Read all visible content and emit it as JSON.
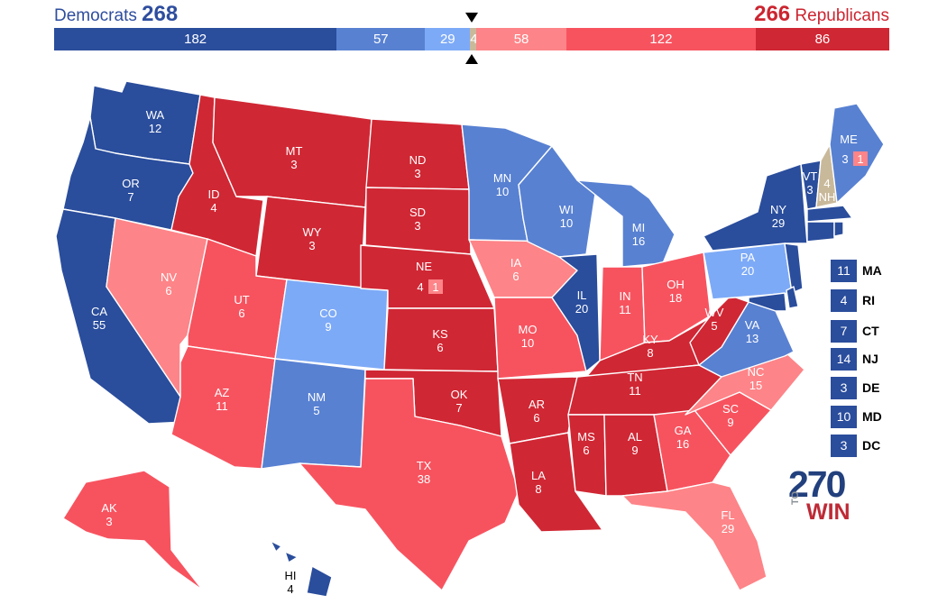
{
  "header": {
    "dem_label": "Democrats",
    "dem_total": "268",
    "rep_total": "266",
    "rep_label": "Republicans"
  },
  "colors": {
    "safe_d": "#2a4d9c",
    "likely_d": "#5881d2",
    "lean_d": "#7daaf7",
    "tossup": "#c9b99b",
    "lean_r": "#fd8488",
    "likely_r": "#f7535f",
    "safe_r": "#d02734"
  },
  "bar": [
    {
      "rating": "safe_d",
      "value": "182"
    },
    {
      "rating": "likely_d",
      "value": "57"
    },
    {
      "rating": "lean_d",
      "value": "29"
    },
    {
      "rating": "tossup",
      "value": "4"
    },
    {
      "rating": "lean_r",
      "value": "58"
    },
    {
      "rating": "likely_r",
      "value": "122"
    },
    {
      "rating": "safe_r",
      "value": "86"
    }
  ],
  "states": [
    {
      "abbr": "WA",
      "ev": "12",
      "rating": "safe_d"
    },
    {
      "abbr": "OR",
      "ev": "7",
      "rating": "safe_d"
    },
    {
      "abbr": "CA",
      "ev": "55",
      "rating": "safe_d"
    },
    {
      "abbr": "NV",
      "ev": "6",
      "rating": "lean_r"
    },
    {
      "abbr": "ID",
      "ev": "4",
      "rating": "safe_r"
    },
    {
      "abbr": "MT",
      "ev": "3",
      "rating": "safe_r"
    },
    {
      "abbr": "WY",
      "ev": "3",
      "rating": "safe_r"
    },
    {
      "abbr": "UT",
      "ev": "6",
      "rating": "likely_r"
    },
    {
      "abbr": "AZ",
      "ev": "11",
      "rating": "likely_r"
    },
    {
      "abbr": "CO",
      "ev": "9",
      "rating": "lean_d"
    },
    {
      "abbr": "NM",
      "ev": "5",
      "rating": "likely_d"
    },
    {
      "abbr": "ND",
      "ev": "3",
      "rating": "safe_r"
    },
    {
      "abbr": "SD",
      "ev": "3",
      "rating": "safe_r"
    },
    {
      "abbr": "NE",
      "ev": "4",
      "rating": "safe_r"
    },
    {
      "abbr": "KS",
      "ev": "6",
      "rating": "safe_r"
    },
    {
      "abbr": "OK",
      "ev": "7",
      "rating": "safe_r"
    },
    {
      "abbr": "TX",
      "ev": "38",
      "rating": "likely_r"
    },
    {
      "abbr": "MN",
      "ev": "10",
      "rating": "likely_d"
    },
    {
      "abbr": "IA",
      "ev": "6",
      "rating": "lean_r"
    },
    {
      "abbr": "MO",
      "ev": "10",
      "rating": "likely_r"
    },
    {
      "abbr": "AR",
      "ev": "6",
      "rating": "safe_r"
    },
    {
      "abbr": "LA",
      "ev": "8",
      "rating": "safe_r"
    },
    {
      "abbr": "WI",
      "ev": "10",
      "rating": "likely_d"
    },
    {
      "abbr": "IL",
      "ev": "20",
      "rating": "safe_d"
    },
    {
      "abbr": "MI",
      "ev": "16",
      "rating": "likely_d"
    },
    {
      "abbr": "IN",
      "ev": "11",
      "rating": "likely_r"
    },
    {
      "abbr": "OH",
      "ev": "18",
      "rating": "likely_r"
    },
    {
      "abbr": "KY",
      "ev": "8",
      "rating": "safe_r"
    },
    {
      "abbr": "TN",
      "ev": "11",
      "rating": "safe_r"
    },
    {
      "abbr": "MS",
      "ev": "6",
      "rating": "safe_r"
    },
    {
      "abbr": "AL",
      "ev": "9",
      "rating": "safe_r"
    },
    {
      "abbr": "GA",
      "ev": "16",
      "rating": "likely_r"
    },
    {
      "abbr": "FL",
      "ev": "29",
      "rating": "lean_r"
    },
    {
      "abbr": "SC",
      "ev": "9",
      "rating": "likely_r"
    },
    {
      "abbr": "NC",
      "ev": "15",
      "rating": "lean_r"
    },
    {
      "abbr": "VA",
      "ev": "13",
      "rating": "likely_d"
    },
    {
      "abbr": "WV",
      "ev": "5",
      "rating": "safe_r"
    },
    {
      "abbr": "PA",
      "ev": "20",
      "rating": "lean_d"
    },
    {
      "abbr": "NY",
      "ev": "29",
      "rating": "safe_d"
    },
    {
      "abbr": "VT",
      "ev": "3",
      "rating": "safe_d"
    },
    {
      "abbr": "NH",
      "ev": "4",
      "rating": "tossup"
    },
    {
      "abbr": "ME",
      "ev": "3",
      "rating": "likely_d"
    },
    {
      "abbr": "AK",
      "ev": "3",
      "rating": "likely_r"
    },
    {
      "abbr": "HI",
      "ev": "4",
      "rating": "safe_d"
    }
  ],
  "split_districts": {
    "me_cd2": {
      "value": "1",
      "rating": "lean_r"
    },
    "ne_cd2": {
      "value": "1",
      "rating": "lean_r"
    }
  },
  "small_states": [
    {
      "abbr": "MA",
      "ev": "11",
      "rating": "safe_d"
    },
    {
      "abbr": "RI",
      "ev": "4",
      "rating": "safe_d"
    },
    {
      "abbr": "CT",
      "ev": "7",
      "rating": "safe_d"
    },
    {
      "abbr": "NJ",
      "ev": "14",
      "rating": "safe_d"
    },
    {
      "abbr": "DE",
      "ev": "3",
      "rating": "safe_d"
    },
    {
      "abbr": "MD",
      "ev": "10",
      "rating": "safe_d"
    },
    {
      "abbr": "DC",
      "ev": "3",
      "rating": "safe_d"
    }
  ],
  "logo": {
    "number": "270",
    "to": "TO",
    "win": "WIN"
  }
}
